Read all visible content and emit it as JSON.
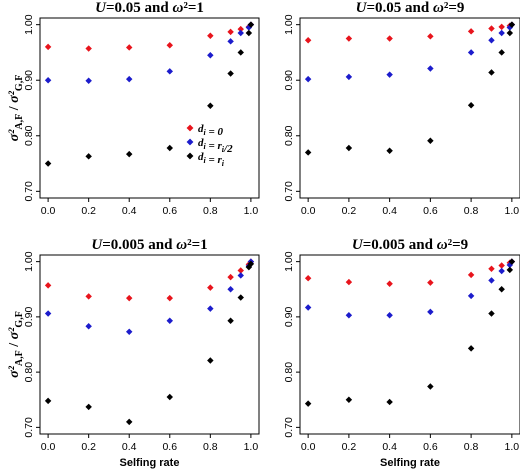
{
  "chart_data": [
    {
      "type": "scatter",
      "title": "U=0.05 and ω²=1",
      "xlabel": "",
      "ylabel": "σ²A,F / σ²G,F",
      "xlim": [
        0,
        1
      ],
      "ylim": [
        0.7,
        1.0
      ],
      "xticks": [
        "0.0",
        "0.2",
        "0.4",
        "0.6",
        "0.8",
        "1.0"
      ],
      "yticks": [
        "0.70",
        "0.80",
        "0.90",
        "1.00"
      ],
      "x": [
        0,
        0.2,
        0.4,
        0.6,
        0.8,
        0.9,
        0.95,
        0.99,
        1.0
      ],
      "legend": {
        "placement": "center-right",
        "entries": [
          "di = 0",
          "di = ri/2",
          "di = ri"
        ]
      },
      "series": [
        {
          "name": "di = 0",
          "color": "#e8141c",
          "marker": "diamond",
          "values": [
            0.96,
            0.957,
            0.959,
            0.963,
            0.98,
            0.987,
            0.992,
            0.996,
            1.0
          ]
        },
        {
          "name": "di = ri/2",
          "color": "#1c1ccc",
          "marker": "diamond",
          "values": [
            0.9,
            0.899,
            0.902,
            0.916,
            0.945,
            0.97,
            0.985,
            0.995,
            1.0
          ]
        },
        {
          "name": "di = ri",
          "color": "#000000",
          "marker": "diamond",
          "values": [
            0.75,
            0.763,
            0.767,
            0.778,
            0.854,
            0.912,
            0.95,
            0.985,
            1.0
          ]
        }
      ]
    },
    {
      "type": "scatter",
      "title": "U=0.05 and ω²=9",
      "xlabel": "",
      "ylabel": "",
      "xlim": [
        0,
        1
      ],
      "ylim": [
        0.7,
        1.0
      ],
      "xticks": [
        "0.0",
        "0.2",
        "0.4",
        "0.6",
        "0.8",
        "1.0"
      ],
      "yticks": [
        "0.70",
        "0.80",
        "0.90",
        "1.00"
      ],
      "x": [
        0,
        0.2,
        0.4,
        0.6,
        0.8,
        0.9,
        0.95,
        0.99,
        1.0
      ],
      "series": [
        {
          "name": "di = 0",
          "color": "#e8141c",
          "marker": "diamond",
          "values": [
            0.972,
            0.975,
            0.975,
            0.979,
            0.988,
            0.993,
            0.996,
            0.998,
            1.0
          ]
        },
        {
          "name": "di = ri/2",
          "color": "#1c1ccc",
          "marker": "diamond",
          "values": [
            0.902,
            0.906,
            0.91,
            0.921,
            0.95,
            0.972,
            0.985,
            0.995,
            1.0
          ]
        },
        {
          "name": "di = ri",
          "color": "#000000",
          "marker": "diamond",
          "values": [
            0.77,
            0.778,
            0.773,
            0.791,
            0.855,
            0.914,
            0.95,
            0.985,
            1.0
          ]
        }
      ]
    },
    {
      "type": "scatter",
      "title": "U=0.005 and ω²=1",
      "xlabel": "Selfing rate",
      "ylabel": "σ²A,F / σ²G,F",
      "xlim": [
        0,
        1
      ],
      "ylim": [
        0.7,
        1.0
      ],
      "xticks": [
        "0.0",
        "0.2",
        "0.4",
        "0.6",
        "0.8",
        "1.0"
      ],
      "yticks": [
        "0.70",
        "0.80",
        "0.90",
        "1.00"
      ],
      "x": [
        0,
        0.2,
        0.4,
        0.6,
        0.8,
        0.9,
        0.95,
        0.99,
        1.0
      ],
      "series": [
        {
          "name": "di = 0",
          "color": "#e8141c",
          "marker": "diamond",
          "values": [
            0.957,
            0.937,
            0.934,
            0.934,
            0.953,
            0.972,
            0.984,
            0.995,
            1.0
          ]
        },
        {
          "name": "di = ri/2",
          "color": "#1c1ccc",
          "marker": "diamond",
          "values": [
            0.906,
            0.883,
            0.873,
            0.893,
            0.915,
            0.95,
            0.975,
            0.992,
            1.0
          ]
        },
        {
          "name": "di = ri",
          "color": "#000000",
          "marker": "diamond",
          "values": [
            0.748,
            0.737,
            0.71,
            0.755,
            0.821,
            0.893,
            0.935,
            0.99,
            0.996
          ]
        }
      ]
    },
    {
      "type": "scatter",
      "title": "U=0.005 and ω²=9",
      "xlabel": "Selfing rate",
      "ylabel": "",
      "xlim": [
        0,
        1
      ],
      "ylim": [
        0.7,
        1.0
      ],
      "xticks": [
        "0.0",
        "0.2",
        "0.4",
        "0.6",
        "0.8",
        "1.0"
      ],
      "yticks": [
        "0.70",
        "0.80",
        "0.90",
        "1.00"
      ],
      "x": [
        0,
        0.2,
        0.4,
        0.6,
        0.8,
        0.9,
        0.95,
        0.99,
        1.0
      ],
      "series": [
        {
          "name": "di = 0",
          "color": "#e8141c",
          "marker": "diamond",
          "values": [
            0.97,
            0.963,
            0.96,
            0.962,
            0.976,
            0.987,
            0.993,
            0.998,
            1.0
          ]
        },
        {
          "name": "di = ri/2",
          "color": "#1c1ccc",
          "marker": "diamond",
          "values": [
            0.917,
            0.903,
            0.903,
            0.909,
            0.938,
            0.966,
            0.983,
            0.994,
            1.0
          ]
        },
        {
          "name": "di = ri",
          "color": "#000000",
          "marker": "diamond",
          "values": [
            0.743,
            0.75,
            0.746,
            0.774,
            0.843,
            0.906,
            0.95,
            0.985,
            1.0
          ]
        }
      ]
    }
  ]
}
